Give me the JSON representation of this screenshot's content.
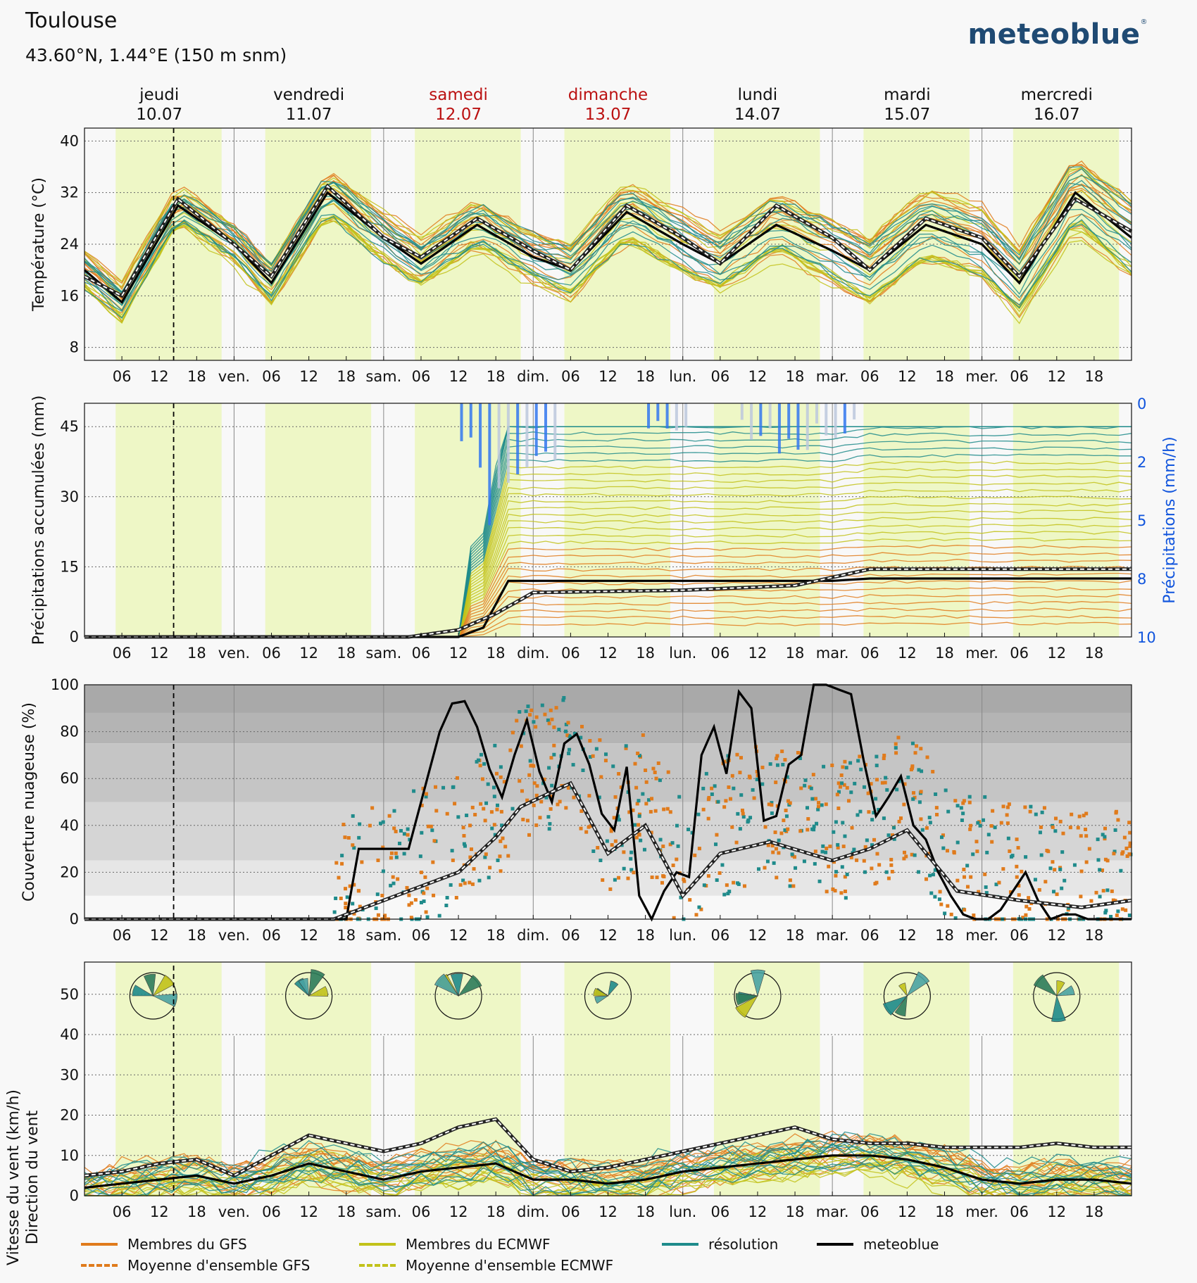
{
  "header": {
    "title": "Toulouse",
    "coords": "43.60°N, 1.44°E (150 m snm)",
    "brand": "meteoblue"
  },
  "colors": {
    "gfs": "#e07b1c",
    "ecmwf": "#c2c21a",
    "resolution": "#1f8b8b",
    "meteoblue": "#000000",
    "precip_axis": "#1155dd",
    "weekend": "#bb1111",
    "day_band": "#eef7c6",
    "night_band": "#f6f6f6"
  },
  "days": [
    {
      "name": "jeudi",
      "date": "10.07",
      "weekend": false
    },
    {
      "name": "vendredi",
      "date": "11.07",
      "weekend": false
    },
    {
      "name": "samedi",
      "date": "12.07",
      "weekend": true
    },
    {
      "name": "dimanche",
      "date": "13.07",
      "weekend": true
    },
    {
      "name": "lundi",
      "date": "14.07",
      "weekend": false
    },
    {
      "name": "mardi",
      "date": "15.07",
      "weekend": false
    },
    {
      "name": "mercredi",
      "date": "16.07",
      "weekend": false
    }
  ],
  "x_ticks": [
    "06",
    "12",
    "18",
    "ven.",
    "06",
    "12",
    "18",
    "sam.",
    "06",
    "12",
    "18",
    "dim.",
    "06",
    "12",
    "18",
    "lun.",
    "06",
    "12",
    "18",
    "mar.",
    "06",
    "12",
    "18",
    "mer.",
    "06",
    "12",
    "18"
  ],
  "chart_data": [
    {
      "type": "line",
      "ylabel": "Température (°C)",
      "ylim": [
        6,
        42
      ],
      "yticks": [
        8,
        16,
        24,
        32,
        40
      ],
      "x_unit": "hours since 10.07 00:00",
      "series": [
        {
          "name": "meteoblue",
          "x": [
            0,
            6,
            15,
            24,
            30,
            39,
            48,
            54,
            63,
            72,
            78,
            87,
            96,
            102,
            111,
            120,
            126,
            135,
            144,
            150,
            159,
            168
          ],
          "values": [
            20,
            15,
            30,
            24,
            18,
            32,
            25,
            21,
            27,
            22,
            20,
            29,
            24,
            21,
            27,
            23,
            20,
            27,
            24,
            18,
            32,
            25
          ]
        },
        {
          "name": "Moyenne d'ensemble GFS",
          "x": [
            0,
            6,
            15,
            24,
            30,
            39,
            48,
            54,
            63,
            72,
            78,
            87,
            96,
            102,
            111,
            120,
            126,
            135,
            144,
            150,
            159,
            168
          ],
          "values": [
            19,
            16,
            31,
            24,
            19,
            33,
            25,
            22,
            28,
            23,
            20,
            30,
            25,
            21,
            30,
            25,
            20,
            28,
            25,
            19,
            31,
            26
          ]
        }
      ]
    },
    {
      "type": "line",
      "ylabel": "Précipitations accumulées (mm)",
      "ylabel_right": "Précipitations (mm/h)",
      "ylim": [
        0,
        50
      ],
      "yticks": [
        0,
        15,
        30,
        45
      ],
      "yticks_right": [
        "0",
        "2",
        "5",
        "8",
        "10"
      ],
      "series": [
        {
          "name": "meteoblue",
          "x": [
            0,
            60,
            64,
            66,
            68,
            72,
            120,
            126,
            168
          ],
          "values": [
            0,
            0,
            2,
            7,
            12,
            12,
            12,
            12.5,
            12.5
          ]
        },
        {
          "name": "Moyenne d'ensemble GFS",
          "x": [
            0,
            52,
            60,
            66,
            72,
            96,
            114,
            126,
            168
          ],
          "values": [
            0,
            0,
            1.5,
            5,
            9.5,
            10,
            11,
            14.5,
            14.5
          ]
        }
      ]
    },
    {
      "type": "line",
      "ylabel": "Couverture nuageuse (%)",
      "ylim": [
        0,
        100
      ],
      "yticks": [
        0,
        20,
        40,
        60,
        80,
        100
      ],
      "series": [
        {
          "name": "meteoblue",
          "x": [
            0,
            42,
            44,
            52,
            57,
            59,
            61,
            63,
            65,
            67,
            69,
            71,
            73,
            75,
            77,
            79,
            81,
            83,
            85,
            87,
            89,
            91,
            93,
            95,
            97,
            99,
            101,
            103,
            105,
            107,
            109,
            111,
            113,
            115,
            117,
            119,
            121,
            123,
            125,
            127,
            129,
            131,
            133,
            135,
            137,
            139,
            141,
            143,
            145,
            147,
            149,
            151,
            153,
            155,
            157,
            159,
            161,
            163,
            165,
            167,
            168
          ],
          "values": [
            0,
            0,
            30,
            30,
            80,
            92,
            93,
            82,
            64,
            52,
            70,
            85,
            63,
            50,
            75,
            79,
            66,
            45,
            38,
            65,
            10,
            0,
            12,
            20,
            18,
            70,
            82,
            62,
            97,
            90,
            42,
            44,
            66,
            70,
            100,
            100,
            98,
            96,
            68,
            44,
            52,
            61,
            40,
            34,
            20,
            10,
            2,
            0,
            0,
            4,
            12,
            20,
            8,
            0,
            2,
            2,
            0,
            0,
            0,
            0,
            0
          ]
        },
        {
          "name": "Moyenne d'ensemble",
          "x": [
            0,
            40,
            50,
            60,
            66,
            70,
            78,
            84,
            90,
            96,
            102,
            110,
            120,
            126,
            132,
            140,
            150,
            160,
            168
          ],
          "values": [
            0,
            0,
            10,
            20,
            35,
            48,
            58,
            28,
            40,
            10,
            28,
            33,
            25,
            30,
            38,
            12,
            8,
            5,
            8
          ]
        }
      ]
    },
    {
      "type": "line",
      "ylabel": "Vitesse du vent (km/h)",
      "ylabel2": "Direction du vent",
      "ylim": [
        0,
        58
      ],
      "yticks": [
        0,
        10,
        20,
        30,
        40,
        50
      ],
      "series": [
        {
          "name": "meteoblue",
          "x": [
            0,
            6,
            12,
            18,
            24,
            30,
            36,
            42,
            48,
            54,
            60,
            66,
            72,
            78,
            84,
            90,
            96,
            102,
            108,
            114,
            120,
            126,
            132,
            138,
            144,
            150,
            156,
            162,
            168
          ],
          "values": [
            2,
            3,
            4,
            5,
            3,
            5,
            8,
            6,
            4,
            6,
            7,
            8,
            4,
            4,
            3,
            4,
            6,
            7,
            8,
            9,
            10,
            10,
            9,
            7,
            4,
            3,
            4,
            4,
            3
          ]
        },
        {
          "name": "Moyenne d'ensemble GFS",
          "x": [
            0,
            6,
            12,
            18,
            24,
            30,
            36,
            42,
            48,
            54,
            60,
            66,
            72,
            78,
            84,
            90,
            96,
            102,
            108,
            114,
            120,
            126,
            132,
            138,
            144,
            150,
            156,
            162,
            168
          ],
          "values": [
            5,
            6,
            8,
            9,
            5,
            10,
            15,
            13,
            11,
            13,
            17,
            19,
            9,
            6,
            7,
            9,
            11,
            13,
            15,
            17,
            14,
            13,
            13,
            12,
            12,
            12,
            13,
            12,
            12
          ]
        }
      ]
    }
  ],
  "legend": [
    {
      "label": "Membres du GFS",
      "style": "solid",
      "color": "#e07b1c"
    },
    {
      "label": "Membres du ECMWF",
      "style": "solid",
      "color": "#c2c21a"
    },
    {
      "label": "résolution",
      "style": "solid",
      "color": "#1f8b8b"
    },
    {
      "label": "meteoblue",
      "style": "solid",
      "color": "#000000"
    },
    {
      "label": "Moyenne d'ensemble GFS",
      "style": "dashed",
      "color": "#e07b1c"
    },
    {
      "label": "Moyenne d'ensemble ECMWF",
      "style": "dashed",
      "color": "#c2c21a"
    }
  ]
}
